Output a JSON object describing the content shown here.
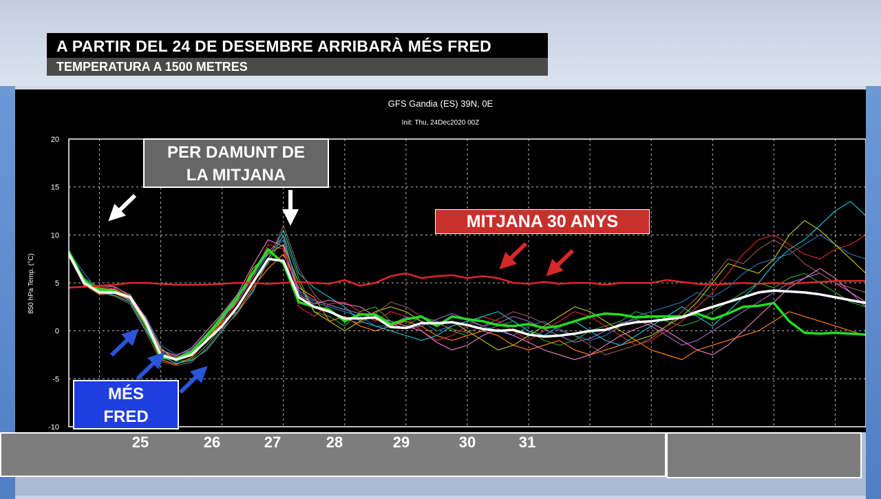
{
  "header": {
    "title": "A PARTIR DEL 24 DE DESEMBRE ARRIBARÀ MÉS FRED",
    "subtitle": "TEMPERATURA A 1500 METRES"
  },
  "callouts": {
    "above_average_line1": "PER DAMUNT DE",
    "above_average_line2": "LA MITJANA",
    "average_30y": "MITJANA 30 ANYS",
    "colder_line1": "MÉS",
    "colder_line2": "FRED"
  },
  "day_labels": [
    "25",
    "26",
    "27",
    "28",
    "29",
    "30",
    "31"
  ],
  "colors": {
    "background": "#000000",
    "mean": "#ffffff",
    "climatology": "#e0262a",
    "control": "#22dd22",
    "arrow_red": "#d62828",
    "arrow_blue": "#2a55d8",
    "grid": "#bbbbbb",
    "members": [
      "#1f77b4",
      "#2ca02c",
      "#ff7f0e",
      "#d62728",
      "#17becf",
      "#bcbd22",
      "#9467bd",
      "#8c564b",
      "#e377c2",
      "#7fbf7f",
      "#3399ff",
      "#ff5050",
      "#00ccaa",
      "#ffaa00",
      "#6666ff",
      "#99cc00"
    ]
  },
  "chart_data": {
    "type": "line",
    "title": "GFS Gandia (ES) 39N, 0E",
    "subtitle": "Init: Thu, 24Dec2020 00Z",
    "ylabel": "850 hPa Temp. (°C)",
    "xlabel": "",
    "ylim": [
      -10,
      20
    ],
    "yticks": [
      -10,
      -5,
      0,
      5,
      10,
      15,
      20
    ],
    "x": [
      0,
      0.25,
      0.5,
      0.75,
      1,
      1.25,
      1.5,
      1.75,
      2,
      2.25,
      2.5,
      2.75,
      3,
      3.25,
      3.5,
      3.75,
      4,
      4.25,
      4.5,
      4.75,
      5,
      5.25,
      5.5,
      5.75,
      6,
      6.25,
      6.5,
      6.75,
      7,
      7.25,
      7.5,
      7.75,
      8,
      8.25,
      8.5,
      8.75,
      9,
      9.25,
      9.5,
      9.75,
      10,
      10.25,
      10.5,
      10.75,
      11,
      11.25,
      11.5,
      11.75,
      12,
      12.25,
      12.5,
      12.75,
      13
    ],
    "xlim": [
      0,
      13
    ],
    "grid": true,
    "series": [
      {
        "values": [
          4.5,
          4.6,
          4.7,
          4.8,
          5.0,
          5.0,
          4.9,
          4.8,
          4.8,
          4.8,
          4.9,
          5.0,
          5.0,
          4.9,
          5.0,
          5.1,
          5.0,
          4.9,
          5.3,
          4.7,
          5.0,
          5.7,
          6.0,
          5.5,
          5.7,
          5.8,
          5.5,
          5.7,
          5.5,
          5.0,
          4.9,
          5.1,
          4.9,
          5.0,
          5.0,
          4.8,
          5.0,
          5.0,
          5.0,
          5.3,
          5.1,
          4.9,
          4.8,
          4.9,
          5.0,
          4.9,
          5.0,
          4.9,
          5.0,
          5.1,
          5.2,
          5.2,
          5.2
        ]
      },
      {
        "values": [
          8.0,
          5.0,
          4.0,
          4.0,
          3.5,
          1.0,
          -2.5,
          -3.0,
          -2.5,
          -1.0,
          0.5,
          2.5,
          5.0,
          7.5,
          7.3,
          3.5,
          2.5,
          2.0,
          1.3,
          1.3,
          1.4,
          0.4,
          0.3,
          0.8,
          0.8,
          0.9,
          0.6,
          0.2,
          0.0,
          0.1,
          -0.4,
          -0.6,
          -0.5,
          -0.3,
          0.0,
          0.1,
          0.6,
          0.9,
          1.0,
          1.2,
          1.4,
          2.0,
          2.5,
          3.0,
          3.5,
          4.0,
          4.2,
          4.1,
          4.0,
          3.8,
          3.5,
          3.2,
          2.9
        ]
      },
      {
        "values": [
          8.3,
          5.2,
          4.3,
          4.1,
          3.5,
          0.8,
          -2.8,
          -2.9,
          -2.2,
          -0.5,
          1.5,
          3.5,
          6.0,
          8.5,
          7.0,
          3.0,
          2.5,
          2.2,
          1.0,
          1.7,
          1.7,
          0.7,
          1.2,
          1.5,
          0.5,
          1.5,
          1.2,
          1.0,
          0.6,
          0.5,
          0.7,
          0.3,
          0.5,
          1.0,
          1.5,
          1.8,
          1.7,
          1.4,
          1.5,
          1.5,
          1.5,
          1.8,
          1.2,
          1.8,
          2.5,
          2.6,
          2.9,
          1.0,
          -0.2,
          -0.3,
          -0.2,
          -0.3,
          -0.4
        ]
      },
      {
        "values": [
          8.2,
          6.0,
          4.0,
          4.5,
          3.0,
          1.5,
          -1.5,
          -2.5,
          -2.0,
          -0.5,
          1.0,
          3.5,
          5.5,
          8.0,
          9.5,
          4.0,
          3.0,
          2.5,
          2.0,
          1.5,
          0.5,
          0.5,
          1.5,
          1.0,
          0.0,
          0.5,
          1.0,
          0.5,
          0.0,
          -0.5,
          0.5,
          1.0,
          0.0,
          -0.5,
          -1.0,
          -0.5,
          0.5,
          1.5,
          2.0,
          2.5,
          3.0,
          4.0,
          3.5,
          4.5,
          6.0,
          7.0,
          7.5,
          8.0,
          9.0,
          10.0,
          9.0,
          8.0,
          7.5
        ]
      },
      {
        "values": [
          8.1,
          5.5,
          4.5,
          4.2,
          3.8,
          1.2,
          -2.0,
          -3.2,
          -3.0,
          -1.5,
          0.5,
          2.5,
          5.0,
          7.0,
          10.0,
          5.5,
          2.0,
          1.5,
          0.5,
          2.0,
          2.5,
          1.0,
          0.5,
          1.5,
          1.0,
          0.0,
          -0.5,
          0.0,
          0.5,
          1.0,
          0.0,
          -1.0,
          -1.5,
          -1.0,
          0.0,
          0.5,
          1.0,
          2.0,
          1.5,
          1.0,
          0.5,
          1.0,
          2.0,
          3.0,
          4.0,
          5.0,
          4.5,
          5.5,
          6.0,
          5.0,
          4.0,
          3.0,
          2.5
        ]
      },
      {
        "values": [
          7.9,
          4.8,
          3.8,
          3.9,
          3.2,
          0.5,
          -3.0,
          -3.5,
          -2.8,
          -1.0,
          1.0,
          2.0,
          4.5,
          6.5,
          8.0,
          4.5,
          3.5,
          1.0,
          1.5,
          0.5,
          0.0,
          0.5,
          1.0,
          0.5,
          -0.5,
          -1.0,
          -0.5,
          0.0,
          -0.5,
          -1.5,
          -2.0,
          -1.5,
          -1.0,
          -2.0,
          -2.5,
          -2.0,
          -1.5,
          -1.0,
          -2.0,
          -2.5,
          -3.0,
          -2.0,
          -1.5,
          -1.0,
          -0.5,
          0.0,
          1.0,
          2.0,
          1.5,
          1.0,
          0.5,
          0.0,
          -0.5
        ]
      },
      {
        "values": [
          8.4,
          5.1,
          4.6,
          4.4,
          3.6,
          1.0,
          -2.2,
          -2.7,
          -2.4,
          -1.2,
          0.8,
          3.0,
          5.5,
          9.0,
          8.5,
          2.5,
          1.5,
          2.8,
          3.0,
          2.0,
          1.0,
          2.0,
          1.5,
          0.0,
          -1.0,
          -0.5,
          0.5,
          1.5,
          1.0,
          0.0,
          -1.0,
          0.0,
          1.0,
          2.0,
          1.5,
          0.5,
          -0.5,
          -1.5,
          -1.0,
          0.0,
          1.0,
          2.5,
          4.0,
          6.0,
          8.0,
          9.5,
          10.0,
          9.0,
          8.0,
          7.5,
          8.5,
          9.0,
          10.0
        ]
      },
      {
        "values": [
          8.0,
          5.3,
          4.1,
          3.7,
          3.0,
          0.2,
          -2.6,
          -3.4,
          -3.1,
          -2.0,
          0.0,
          2.0,
          4.0,
          7.5,
          10.5,
          6.0,
          4.5,
          3.5,
          2.5,
          1.0,
          0.5,
          0.0,
          -0.5,
          -1.0,
          -0.5,
          0.5,
          1.0,
          1.5,
          2.0,
          1.0,
          0.0,
          -0.5,
          0.5,
          1.0,
          0.0,
          -1.0,
          -1.5,
          -0.5,
          0.5,
          1.5,
          2.5,
          1.5,
          0.5,
          2.0,
          3.5,
          5.0,
          7.0,
          8.5,
          9.5,
          11.0,
          12.5,
          13.5,
          12.0
        ]
      },
      {
        "values": [
          8.2,
          4.9,
          4.4,
          4.3,
          3.4,
          1.3,
          -1.8,
          -3.1,
          -2.6,
          -0.8,
          1.2,
          3.2,
          6.5,
          8.0,
          9.0,
          5.0,
          2.0,
          1.0,
          0.0,
          1.0,
          2.0,
          2.5,
          2.0,
          1.0,
          0.5,
          1.0,
          0.0,
          -1.0,
          -2.0,
          -1.5,
          -0.5,
          0.5,
          1.5,
          2.5,
          2.0,
          1.0,
          0.0,
          -1.0,
          -0.5,
          0.5,
          1.5,
          3.0,
          5.0,
          7.0,
          6.5,
          6.0,
          7.5,
          10.0,
          11.5,
          10.5,
          9.0,
          7.5,
          6.0
        ]
      },
      {
        "values": [
          8.1,
          5.4,
          4.2,
          4.0,
          3.3,
          0.7,
          -2.4,
          -2.8,
          -2.0,
          -0.3,
          1.3,
          3.0,
          5.8,
          8.2,
          9.8,
          4.2,
          3.2,
          2.7,
          2.2,
          1.8,
          1.2,
          0.8,
          0.2,
          0.5,
          1.2,
          1.8,
          1.2,
          0.5,
          0.8,
          1.5,
          1.0,
          0.2,
          -0.5,
          -1.2,
          -0.8,
          0.0,
          0.8,
          1.2,
          0.5,
          -0.5,
          -1.5,
          -1.0,
          0.0,
          1.0,
          2.0,
          3.0,
          4.0,
          5.0,
          5.5,
          6.0,
          5.0,
          4.0,
          2.5
        ]
      },
      {
        "values": [
          8.3,
          5.0,
          4.0,
          3.6,
          2.8,
          0.0,
          -3.2,
          -3.6,
          -3.3,
          -1.8,
          0.2,
          1.8,
          4.2,
          7.2,
          11.0,
          6.5,
          3.8,
          2.2,
          1.2,
          0.8,
          1.8,
          3.0,
          2.5,
          1.5,
          0.8,
          0.2,
          -0.2,
          0.5,
          1.2,
          2.0,
          1.5,
          0.8,
          0.2,
          -0.5,
          -1.5,
          -2.5,
          -2.0,
          -1.5,
          -0.8,
          0.5,
          2.0,
          3.5,
          5.5,
          7.5,
          7.0,
          8.5,
          9.5,
          8.5,
          7.0,
          6.0,
          5.0,
          4.5,
          4.0
        ]
      },
      {
        "values": [
          7.8,
          4.7,
          4.7,
          4.6,
          3.7,
          1.4,
          -2.0,
          -2.6,
          -1.8,
          0.0,
          1.8,
          3.8,
          6.8,
          9.5,
          8.8,
          3.8,
          2.8,
          3.2,
          2.8,
          2.5,
          1.5,
          1.0,
          0.5,
          0.0,
          -1.2,
          -2.0,
          -1.5,
          -0.5,
          0.2,
          -0.5,
          -1.2,
          -2.0,
          -2.5,
          -3.0,
          -2.5,
          -1.5,
          -0.5,
          0.2,
          0.8,
          0.0,
          -1.0,
          -2.0,
          -2.5,
          -1.5,
          0.0,
          1.5,
          3.0,
          4.5,
          5.5,
          6.5,
          5.5,
          4.0,
          3.0
        ]
      }
    ],
    "series_roles": [
      "climatology",
      "ensemble-mean",
      "control",
      "member",
      "member",
      "member",
      "member",
      "member",
      "member",
      "member",
      "member",
      "member"
    ],
    "annotations": [
      "PER DAMUNT DE LA MITJANA",
      "MITJANA 30 ANYS",
      "MÉS FRED"
    ]
  }
}
